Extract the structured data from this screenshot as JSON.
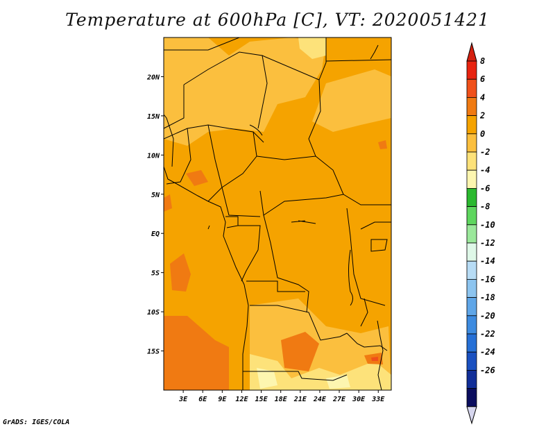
{
  "title": "Temperature at 600hPa [C], VT: 2020051421",
  "credit": "GrADS: IGES/COLA",
  "map": {
    "lon_range": [
      0,
      35
    ],
    "lat_range": [
      -20,
      25
    ],
    "lat_ticks": [
      {
        "value": 20,
        "label": "20N"
      },
      {
        "value": 15,
        "label": "15N"
      },
      {
        "value": 10,
        "label": "10N"
      },
      {
        "value": 5,
        "label": "5N"
      },
      {
        "value": 0,
        "label": "EQ"
      },
      {
        "value": -5,
        "label": "5S"
      },
      {
        "value": -10,
        "label": "10S"
      },
      {
        "value": -15,
        "label": "15S"
      }
    ],
    "lon_ticks": [
      {
        "value": 3,
        "label": "3E"
      },
      {
        "value": 6,
        "label": "6E"
      },
      {
        "value": 9,
        "label": "9E"
      },
      {
        "value": 12,
        "label": "12E"
      },
      {
        "value": 15,
        "label": "15E"
      },
      {
        "value": 18,
        "label": "18E"
      },
      {
        "value": 21,
        "label": "21E"
      },
      {
        "value": 24,
        "label": "24E"
      },
      {
        "value": 27,
        "label": "27E"
      },
      {
        "value": 30,
        "label": "30E"
      },
      {
        "value": 33,
        "label": "33E"
      }
    ],
    "base_color": "#f5a300"
  },
  "colorbar": {
    "levels": [
      {
        "label": "8",
        "color": "#e8230f"
      },
      {
        "label": "6",
        "color": "#f0501a"
      },
      {
        "label": "4",
        "color": "#f07a12"
      },
      {
        "label": "2",
        "color": "#f5a300"
      },
      {
        "label": "0",
        "color": "#fbbf3e"
      },
      {
        "label": "-2",
        "color": "#fde27a"
      },
      {
        "label": "-4",
        "color": "#fdf6b0"
      },
      {
        "label": "-6",
        "color": "#2bb92f"
      },
      {
        "label": "-8",
        "color": "#5ed65e"
      },
      {
        "label": "-10",
        "color": "#9be89b"
      },
      {
        "label": "-12",
        "color": "#dff8e8"
      },
      {
        "label": "-14",
        "color": "#b7dcf5"
      },
      {
        "label": "-16",
        "color": "#8cc4ef"
      },
      {
        "label": "-18",
        "color": "#5fa6e8"
      },
      {
        "label": "-20",
        "color": "#3d8be0"
      },
      {
        "label": "-22",
        "color": "#2670d6"
      },
      {
        "label": "-24",
        "color": "#1a50c0"
      },
      {
        "label": "-26",
        "color": "#112e98"
      }
    ],
    "top_arrow_color": "#d42010",
    "bottom_bar_color": "#0a0d5e",
    "bottom_arrow_color": "#d6d6ee"
  }
}
